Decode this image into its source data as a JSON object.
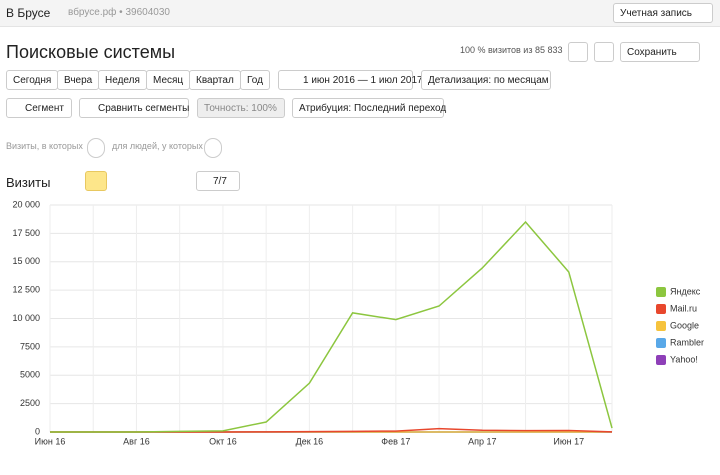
{
  "header": {
    "site": "В Брусе",
    "site_info": "вбрусе.рф • 39604030",
    "account": "Учетная запись"
  },
  "report": {
    "title": "Поисковые системы",
    "visits_share": "100 % визитов из 85 833",
    "save": "Сохранить"
  },
  "periods": [
    "Сегодня",
    "Вчера",
    "Неделя",
    "Месяц",
    "Квартал",
    "Год"
  ],
  "date_range": "1 июн 2016 — 1 июл 2017",
  "detail": "Детализация: по месяцам",
  "segment": "Сегмент",
  "compare": "Сравнить сегменты",
  "accuracy": "Точность: 100%",
  "attribution": "Атрибуция: Последний переход",
  "filter_visits": "Визиты, в которых",
  "filter_people": "для людей, у которых",
  "metric": "Визиты",
  "series_count": "7/7",
  "chart_data": {
    "type": "line",
    "categories": [
      "Июн 16",
      null,
      "Авг 16",
      null,
      "Окт 16",
      null,
      "Дек 16",
      null,
      "Фев 17",
      null,
      "Апр 17",
      null,
      "Июн 17",
      null
    ],
    "series": [
      {
        "name": "Яндекс",
        "color": "#8cc63f",
        "values": [
          0,
          0,
          0,
          50,
          100,
          880,
          4300,
          10500,
          9900,
          11100,
          14450,
          18500,
          14100,
          350
        ]
      },
      {
        "name": "Mail.ru",
        "color": "#e8472d",
        "values": [
          0,
          0,
          0,
          0,
          0,
          10,
          30,
          60,
          80,
          300,
          150,
          120,
          130,
          10
        ]
      },
      {
        "name": "Google",
        "color": "#f6c33d",
        "values": [
          0,
          0,
          0,
          0,
          0,
          0,
          0,
          0,
          0,
          0,
          0,
          0,
          0,
          0
        ]
      },
      {
        "name": "Rambler",
        "color": "#59a8e8",
        "values": [
          0,
          0,
          0,
          0,
          0,
          0,
          0,
          0,
          0,
          0,
          0,
          0,
          0,
          0
        ]
      },
      {
        "name": "Yahoo!",
        "color": "#8e3fb8",
        "values": [
          0,
          0,
          0,
          0,
          0,
          0,
          0,
          0,
          0,
          0,
          0,
          0,
          0,
          0
        ]
      }
    ],
    "ylim": [
      0,
      20000
    ],
    "yticks": [
      0,
      {
        "value": 2500,
        "label": "2500"
      },
      {
        "value": 5000,
        "label": "5000"
      },
      {
        "value": 7500,
        "label": "7500"
      },
      {
        "value": 10000,
        "label": "10 000"
      },
      {
        "value": 12500,
        "label": "12 500"
      },
      {
        "value": 15000,
        "label": "15 000"
      },
      {
        "value": 17500,
        "label": "17 500"
      },
      {
        "value": 20000,
        "label": "20 000"
      }
    ],
    "grid": true,
    "legend": "right"
  }
}
